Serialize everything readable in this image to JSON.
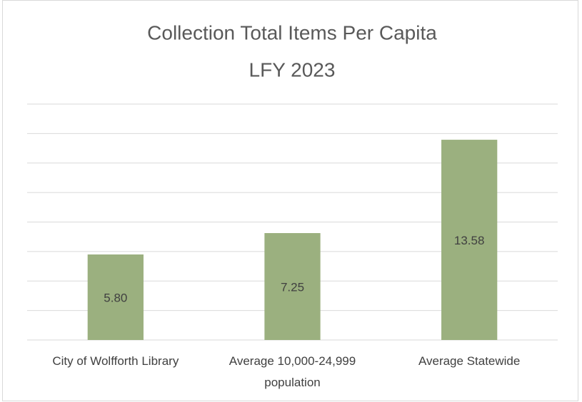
{
  "chart_data": {
    "type": "bar",
    "title": [
      "Collection Total Items Per Capita",
      "LFY 2023"
    ],
    "categories": [
      "City of Wolfforth Library",
      "Average 10,000-24,999 population",
      "Average Statewide"
    ],
    "values": [
      5.8,
      7.25,
      13.58
    ],
    "value_labels": [
      "5.80",
      "7.25",
      "13.58"
    ],
    "color": "#9bb07f",
    "ylim": [
      0,
      16
    ],
    "yticks": [
      0,
      2,
      4,
      6,
      8,
      10,
      12,
      14,
      16
    ],
    "grid": true
  }
}
